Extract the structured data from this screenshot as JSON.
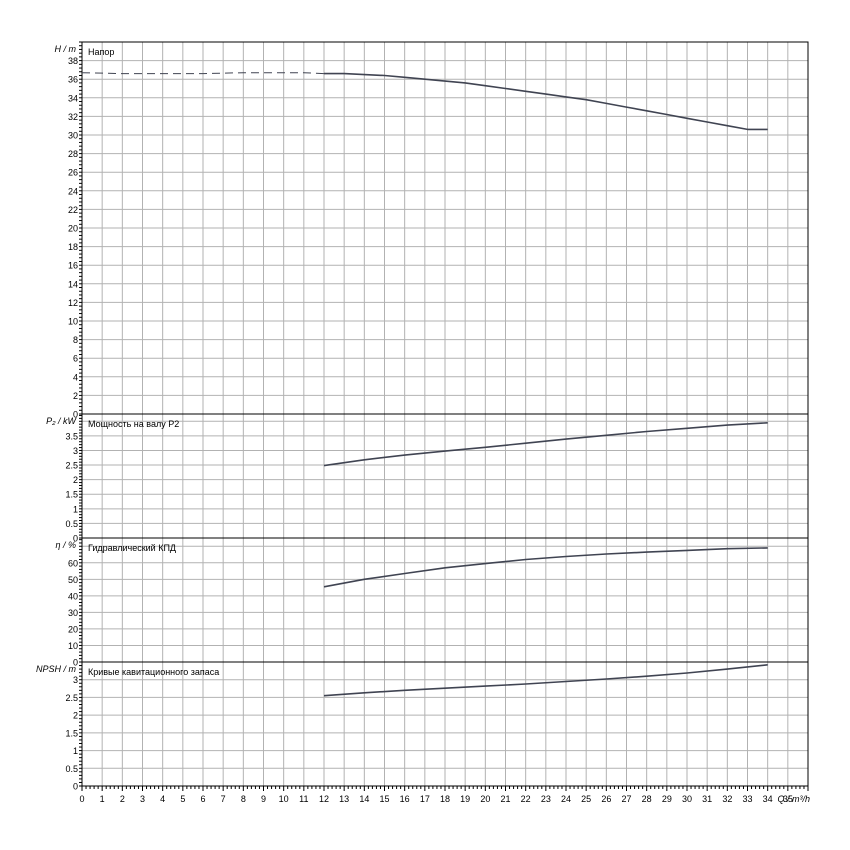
{
  "chart_data": [
    {
      "type": "line",
      "title": "Напор",
      "ylabel": "H / m",
      "ylim": [
        0,
        40
      ],
      "ytick_step": 2,
      "ytick_labels": [
        "0",
        "2",
        "4",
        "6",
        "8",
        "10",
        "12",
        "14",
        "16",
        "18",
        "20",
        "22",
        "24",
        "26",
        "28",
        "30",
        "32",
        "34",
        "36",
        "38"
      ],
      "xlim": [
        0,
        36
      ],
      "series": [
        {
          "style": "dashed",
          "x": [
            0,
            2,
            4,
            6,
            8,
            10,
            11,
            12
          ],
          "y": [
            36.7,
            36.6,
            36.6,
            36.6,
            36.7,
            36.7,
            36.7,
            36.6
          ]
        },
        {
          "style": "solid",
          "x": [
            12,
            13,
            14,
            15,
            16,
            17,
            18,
            19,
            20,
            21,
            22,
            23,
            24,
            25,
            26,
            27,
            28,
            29,
            30,
            31,
            32,
            33,
            34
          ],
          "y": [
            36.6,
            36.6,
            36.5,
            36.4,
            36.2,
            36.0,
            35.8,
            35.6,
            35.3,
            35.0,
            34.7,
            34.4,
            34.1,
            33.8,
            33.4,
            33.0,
            32.6,
            32.2,
            31.8,
            31.4,
            31.0,
            30.6,
            30.6
          ]
        }
      ]
    },
    {
      "type": "line",
      "title": "Мощность на валу P2",
      "ylabel": "P₂ / kW",
      "ylim": [
        0,
        4.25
      ],
      "ytick_step": 0.5,
      "ytick_labels": [
        "0",
        "0.5",
        "1",
        "1.5",
        "2",
        "2.5",
        "3",
        "3.5"
      ],
      "xlim": [
        0,
        36
      ],
      "series": [
        {
          "style": "solid",
          "x": [
            12,
            14,
            16,
            18,
            20,
            22,
            24,
            26,
            28,
            30,
            32,
            34
          ],
          "y": [
            2.48,
            2.68,
            2.84,
            2.98,
            3.11,
            3.25,
            3.39,
            3.52,
            3.65,
            3.76,
            3.87,
            3.95
          ]
        }
      ]
    },
    {
      "type": "line",
      "title": "Гидравлический КПД",
      "ylabel": "η / %",
      "ylim": [
        0,
        75
      ],
      "ytick_step": 10,
      "ytick_labels": [
        "0",
        "10",
        "20",
        "30",
        "40",
        "50",
        "60"
      ],
      "xlim": [
        0,
        36
      ],
      "series": [
        {
          "style": "solid",
          "x": [
            12,
            14,
            16,
            18,
            20,
            22,
            24,
            26,
            28,
            30,
            32,
            34
          ],
          "y": [
            45.5,
            50,
            53.5,
            57,
            59.5,
            62,
            63.8,
            65.3,
            66.5,
            67.5,
            68.5,
            69
          ]
        }
      ]
    },
    {
      "type": "line",
      "title": "Кривые кавитационного запаса",
      "ylabel": "NPSH / m",
      "ylim": [
        0,
        3.5
      ],
      "ytick_step": 0.5,
      "ytick_labels": [
        "0",
        "0.5",
        "1",
        "1.5",
        "2",
        "2.5",
        "3"
      ],
      "xlim": [
        0,
        36
      ],
      "xlabel": "Q / m³/h",
      "xtick_labels": [
        "0",
        "1",
        "2",
        "3",
        "4",
        "5",
        "6",
        "7",
        "8",
        "9",
        "10",
        "11",
        "12",
        "13",
        "14",
        "15",
        "16",
        "17",
        "18",
        "19",
        "20",
        "21",
        "22",
        "23",
        "24",
        "25",
        "26",
        "27",
        "28",
        "29",
        "30",
        "31",
        "32",
        "33",
        "34",
        "35"
      ],
      "series": [
        {
          "style": "solid",
          "x": [
            12,
            14,
            16,
            18,
            20,
            22,
            24,
            26,
            28,
            30,
            32,
            34
          ],
          "y": [
            2.55,
            2.63,
            2.7,
            2.76,
            2.82,
            2.88,
            2.95,
            3.02,
            3.1,
            3.19,
            3.3,
            3.42
          ]
        }
      ]
    }
  ],
  "colors": {
    "curve": "#404452",
    "grid": "#b2b2b2",
    "frame": "#000000"
  }
}
